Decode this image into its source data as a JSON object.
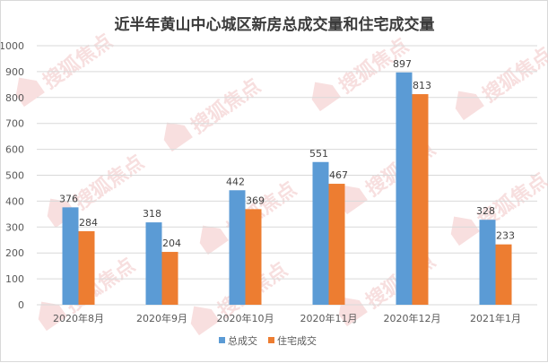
{
  "chart_data": {
    "type": "bar",
    "title": "近半年黄山中心城区新房总成交量和住宅成交量",
    "categories": [
      "2020年8月",
      "2020年9月",
      "2020年10月",
      "2020年11月",
      "2020年12月",
      "2021年1月"
    ],
    "series": [
      {
        "name": "总成交",
        "values": [
          376,
          318,
          442,
          551,
          897,
          328
        ],
        "color": "#5b9bd5"
      },
      {
        "name": "住宅成交",
        "values": [
          284,
          204,
          369,
          467,
          813,
          233
        ],
        "color": "#ed7d31"
      }
    ],
    "ylim": [
      0,
      1000
    ],
    "ytick_step": 100,
    "grid": true,
    "legend_position": "bottom"
  },
  "watermark": {
    "text": "搜狐焦点",
    "icon": "house-logo-icon"
  }
}
